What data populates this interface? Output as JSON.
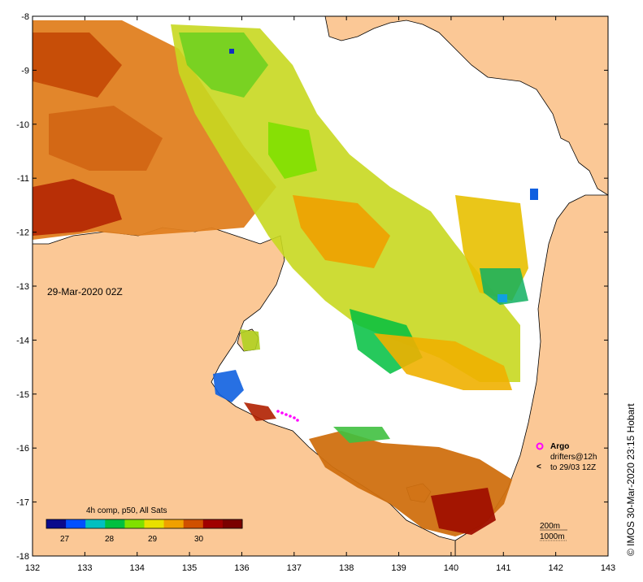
{
  "map": {
    "timestamp_label": "29-Mar-2020 02Z",
    "composite_label": "4h comp, p50, All Sats",
    "credit": "© IMOS 30-Mar-2020 23:15 Hobart",
    "longitude_ticks": [
      "132",
      "133",
      "134",
      "135",
      "136",
      "137",
      "138",
      "139",
      "140",
      "141",
      "142",
      "143"
    ],
    "latitude_ticks": [
      "-8",
      "-9",
      "-10",
      "-11",
      "-12",
      "-13",
      "-14",
      "-15",
      "-16",
      "-17",
      "-18"
    ],
    "colorbar": {
      "ticks": [
        "27",
        "28",
        "29",
        "30"
      ],
      "colors": [
        "#0a0a8c",
        "#0050ff",
        "#00c0c0",
        "#00c040",
        "#80e000",
        "#e8e000",
        "#f0a000",
        "#d05000",
        "#a00000",
        "#7a0000"
      ]
    },
    "legend": {
      "argo_title": "Argo",
      "drifters_line1": "drifters@12h",
      "drifters_line2": "to 29/03 12Z",
      "contour_200": "200m",
      "contour_1000": "1000m",
      "argo_color": "#ff00ff"
    },
    "colors": {
      "land": "#fbc896",
      "water": "#ffffff",
      "coast": "#000000"
    }
  }
}
